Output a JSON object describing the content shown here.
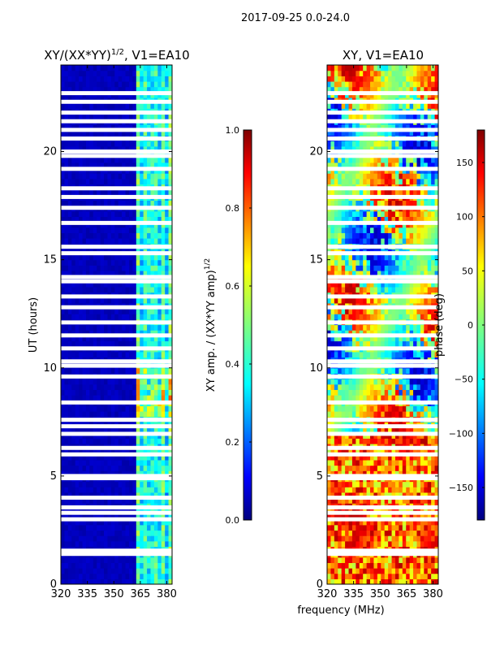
{
  "suptitle": "2017-09-25 0.0-24.0",
  "shared_xlabel": "frequency (MHz)",
  "colors": {
    "jet": [
      "#00007f",
      "#0000ff",
      "#007fff",
      "#00ffff",
      "#7fff7f",
      "#ffff00",
      "#ff7f00",
      "#ff0000",
      "#7f0000"
    ]
  },
  "chart_data": [
    {
      "type": "heatmap",
      "title": "XY/(XX*YY)",
      "title_exp": "1/2",
      "title_suffix": ", V1=EA10",
      "xlabel": "",
      "ylabel": "UT (hours)",
      "xlim": [
        320,
        383
      ],
      "ylim": [
        0,
        24
      ],
      "xticks": [
        320,
        335,
        350,
        365,
        380
      ],
      "yticks": [
        0,
        5,
        10,
        15,
        20
      ],
      "colorbar": {
        "label": "XY amp. / (XX*YY amp)",
        "label_exp": "1/2",
        "range": [
          0.0,
          1.0
        ],
        "ticks": [
          "0.0",
          "0.2",
          "0.4",
          "0.6",
          "0.8",
          "1.0"
        ]
      },
      "gaps_hours": [
        1.4,
        1.55,
        3.0,
        3.3,
        3.55,
        4.0,
        4.9,
        5.0,
        6.0,
        6.3,
        6.95,
        7.3,
        7.6,
        8.4,
        9.6,
        10.1,
        10.3,
        10.9,
        11.5,
        12.1,
        12.8,
        13.3,
        14.0,
        14.2,
        15.3,
        15.6,
        16.7,
        17.4,
        17.9,
        18.3,
        19.2,
        19.8,
        20.0,
        20.6,
        21.0,
        21.4,
        21.8,
        22.3,
        22.7
      ]
    },
    {
      "type": "heatmap",
      "title": "XY, V1=EA10",
      "xlabel": "frequency (MHz)",
      "ylabel": "",
      "xlim": [
        320,
        383
      ],
      "ylim": [
        0,
        24
      ],
      "xticks": [
        320,
        335,
        350,
        365,
        380
      ],
      "yticks": [
        0,
        5,
        10,
        15,
        20
      ],
      "colorbar": {
        "label": "phase (deg)",
        "range": [
          -180,
          180
        ],
        "ticks": [
          "150",
          "100",
          "50",
          "0",
          "−50",
          "−100",
          "−150"
        ]
      },
      "gaps_hours": [
        1.4,
        1.55,
        3.0,
        3.3,
        3.55,
        4.0,
        4.9,
        5.0,
        6.0,
        6.3,
        6.95,
        7.3,
        7.6,
        8.4,
        9.6,
        10.1,
        10.3,
        10.9,
        11.5,
        12.1,
        12.8,
        13.3,
        14.0,
        14.2,
        15.3,
        15.6,
        16.7,
        17.4,
        17.9,
        18.3,
        19.2,
        19.8,
        20.0,
        20.6,
        21.0,
        21.4,
        21.8,
        22.3,
        22.7
      ]
    }
  ]
}
